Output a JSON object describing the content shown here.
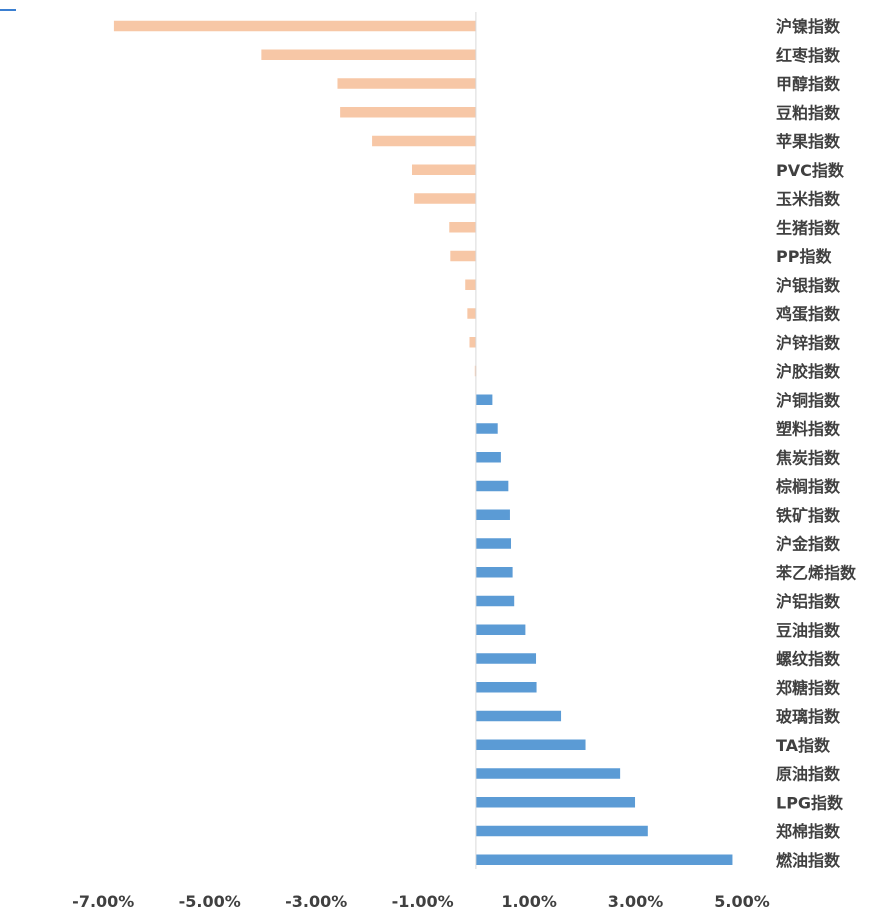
{
  "chart_data": {
    "type": "bar",
    "orientation": "horizontal",
    "title": "",
    "xlabel": "",
    "ylabel": "",
    "grid": false,
    "legend": "none",
    "xlim": [
      -7.7,
      5.3
    ],
    "xticks": [
      -7,
      -5,
      -3,
      -1,
      1,
      3,
      5
    ],
    "tick_labels": [
      "-7.00%",
      "-5.00%",
      "-3.00%",
      "-1.00%",
      "1.00%",
      "3.00%",
      "5.00%"
    ],
    "categories": [
      "沪镍指数",
      "红枣指数",
      "甲醇指数",
      "豆粕指数",
      "苹果指数",
      "PVC指数",
      "玉米指数",
      "生猪指数",
      "PP指数",
      "沪银指数",
      "鸡蛋指数",
      "沪锌指数",
      "沪胶指数",
      "沪铜指数",
      "塑料指数",
      "焦炭指数",
      "棕榈指数",
      "铁矿指数",
      "沪金指数",
      "苯乙烯指数",
      "沪铝指数",
      "豆油指数",
      "螺纹指数",
      "郑糖指数",
      "玻璃指数",
      "TA指数",
      "原油指数",
      "LPG指数",
      "郑棉指数",
      "燃油指数"
    ],
    "values": [
      -6.8,
      -4.03,
      -2.6,
      -2.55,
      -1.95,
      -1.2,
      -1.16,
      -0.5,
      -0.48,
      -0.2,
      -0.16,
      -0.12,
      -0.02,
      0.31,
      0.41,
      0.47,
      0.61,
      0.64,
      0.66,
      0.69,
      0.72,
      0.93,
      1.13,
      1.14,
      1.6,
      2.06,
      2.71,
      2.99,
      3.23,
      4.82
    ],
    "colors": {
      "negative": "#f7c7a6",
      "positive": "#5b9bd5",
      "axis": "#d9d9d9",
      "text": "#404040"
    }
  }
}
